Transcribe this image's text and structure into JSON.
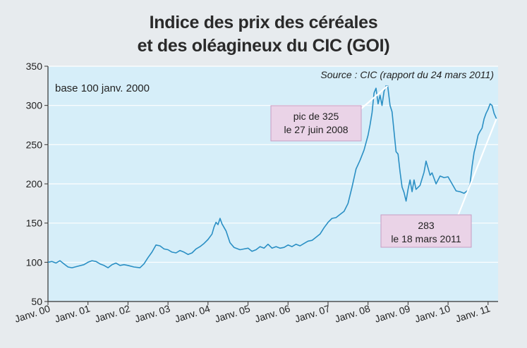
{
  "title": {
    "line1": "Indice des prix des céréales",
    "line2": "et des oléagineux du CIC (GOI)"
  },
  "colors": {
    "page_bg": "#e7ebee",
    "plot_bg": "#d6eef9",
    "line": "#2a8fc4",
    "grid": "#ffffff",
    "annotation_bg": "#ead3e7",
    "annotation_border": "#c79cc3"
  },
  "chart_data": {
    "type": "line",
    "base_note": "base 100 janv. 2000",
    "source": "Source : CIC (rapport du 24 mars 2011)",
    "x_tick_labels": [
      "Janv. 00",
      "Janv. 01",
      "Janv. 02",
      "Janv. 03",
      "Janv. 04",
      "Janv. 05",
      "Janv. 06",
      "Janv. 07",
      "Janv. 08",
      "Janv. 09",
      "Janv. 10",
      "Janv. 11"
    ],
    "x_ticks": [
      2000,
      2001,
      2002,
      2003,
      2004,
      2005,
      2006,
      2007,
      2008,
      2009,
      2010,
      2011
    ],
    "xlim": [
      2000,
      2011.25
    ],
    "ylim": [
      50,
      350
    ],
    "y_ticks": [
      50,
      100,
      150,
      200,
      250,
      300,
      350
    ],
    "grid": "horizontal",
    "series": [
      {
        "values": [
          [
            2000.0,
            100
          ],
          [
            2000.1,
            101
          ],
          [
            2000.2,
            99
          ],
          [
            2000.3,
            102
          ],
          [
            2000.4,
            98
          ],
          [
            2000.5,
            94
          ],
          [
            2000.6,
            93
          ],
          [
            2000.75,
            95
          ],
          [
            2000.9,
            97
          ],
          [
            2001.0,
            100
          ],
          [
            2001.1,
            102
          ],
          [
            2001.2,
            101
          ],
          [
            2001.3,
            98
          ],
          [
            2001.4,
            96
          ],
          [
            2001.5,
            93
          ],
          [
            2001.6,
            97
          ],
          [
            2001.7,
            99
          ],
          [
            2001.8,
            96
          ],
          [
            2001.9,
            97
          ],
          [
            2002.0,
            96
          ],
          [
            2002.15,
            94
          ],
          [
            2002.3,
            93
          ],
          [
            2002.4,
            98
          ],
          [
            2002.5,
            106
          ],
          [
            2002.6,
            113
          ],
          [
            2002.7,
            122
          ],
          [
            2002.8,
            121
          ],
          [
            2002.9,
            117
          ],
          [
            2003.0,
            116
          ],
          [
            2003.1,
            113
          ],
          [
            2003.2,
            112
          ],
          [
            2003.3,
            115
          ],
          [
            2003.4,
            113
          ],
          [
            2003.5,
            110
          ],
          [
            2003.6,
            112
          ],
          [
            2003.7,
            117
          ],
          [
            2003.8,
            120
          ],
          [
            2003.9,
            124
          ],
          [
            2004.0,
            129
          ],
          [
            2004.1,
            136
          ],
          [
            2004.15,
            145
          ],
          [
            2004.2,
            151
          ],
          [
            2004.25,
            148
          ],
          [
            2004.3,
            156
          ],
          [
            2004.35,
            149
          ],
          [
            2004.45,
            140
          ],
          [
            2004.55,
            125
          ],
          [
            2004.65,
            119
          ],
          [
            2004.8,
            116
          ],
          [
            2004.9,
            117
          ],
          [
            2005.0,
            118
          ],
          [
            2005.1,
            114
          ],
          [
            2005.2,
            116
          ],
          [
            2005.3,
            120
          ],
          [
            2005.4,
            118
          ],
          [
            2005.5,
            123
          ],
          [
            2005.6,
            118
          ],
          [
            2005.7,
            120
          ],
          [
            2005.8,
            118
          ],
          [
            2005.9,
            119
          ],
          [
            2006.0,
            122
          ],
          [
            2006.1,
            120
          ],
          [
            2006.2,
            123
          ],
          [
            2006.3,
            121
          ],
          [
            2006.4,
            124
          ],
          [
            2006.5,
            127
          ],
          [
            2006.6,
            128
          ],
          [
            2006.7,
            132
          ],
          [
            2006.8,
            136
          ],
          [
            2006.9,
            144
          ],
          [
            2007.0,
            151
          ],
          [
            2007.1,
            156
          ],
          [
            2007.2,
            157
          ],
          [
            2007.3,
            161
          ],
          [
            2007.4,
            165
          ],
          [
            2007.5,
            175
          ],
          [
            2007.6,
            196
          ],
          [
            2007.7,
            219
          ],
          [
            2007.8,
            230
          ],
          [
            2007.9,
            243
          ],
          [
            2008.0,
            262
          ],
          [
            2008.05,
            275
          ],
          [
            2008.1,
            291
          ],
          [
            2008.15,
            316
          ],
          [
            2008.2,
            322
          ],
          [
            2008.25,
            302
          ],
          [
            2008.3,
            313
          ],
          [
            2008.35,
            300
          ],
          [
            2008.4,
            318
          ],
          [
            2008.45,
            325
          ],
          [
            2008.49,
            325
          ],
          [
            2008.55,
            300
          ],
          [
            2008.6,
            292
          ],
          [
            2008.65,
            266
          ],
          [
            2008.7,
            241
          ],
          [
            2008.75,
            238
          ],
          [
            2008.8,
            215
          ],
          [
            2008.85,
            196
          ],
          [
            2008.9,
            189
          ],
          [
            2008.95,
            178
          ],
          [
            2009.0,
            193
          ],
          [
            2009.05,
            205
          ],
          [
            2009.1,
            190
          ],
          [
            2009.15,
            205
          ],
          [
            2009.2,
            193
          ],
          [
            2009.3,
            198
          ],
          [
            2009.4,
            215
          ],
          [
            2009.45,
            229
          ],
          [
            2009.5,
            220
          ],
          [
            2009.55,
            211
          ],
          [
            2009.6,
            214
          ],
          [
            2009.7,
            200
          ],
          [
            2009.8,
            210
          ],
          [
            2009.9,
            208
          ],
          [
            2010.0,
            209
          ],
          [
            2010.1,
            200
          ],
          [
            2010.2,
            191
          ],
          [
            2010.3,
            190
          ],
          [
            2010.4,
            188
          ],
          [
            2010.5,
            192
          ],
          [
            2010.55,
            200
          ],
          [
            2010.6,
            222
          ],
          [
            2010.65,
            240
          ],
          [
            2010.7,
            250
          ],
          [
            2010.75,
            262
          ],
          [
            2010.8,
            267
          ],
          [
            2010.85,
            271
          ],
          [
            2010.9,
            283
          ],
          [
            2010.95,
            290
          ],
          [
            2011.0,
            295
          ],
          [
            2011.05,
            302
          ],
          [
            2011.1,
            300
          ],
          [
            2011.15,
            290
          ],
          [
            2011.21,
            283
          ]
        ]
      }
    ],
    "annotations": [
      {
        "line1": "pic de 325",
        "line2": "le 27 juin 2008",
        "x": 2008.49,
        "y": 325
      },
      {
        "line1": "283",
        "line2": "le 18 mars 2011",
        "x": 2011.21,
        "y": 283
      }
    ]
  }
}
